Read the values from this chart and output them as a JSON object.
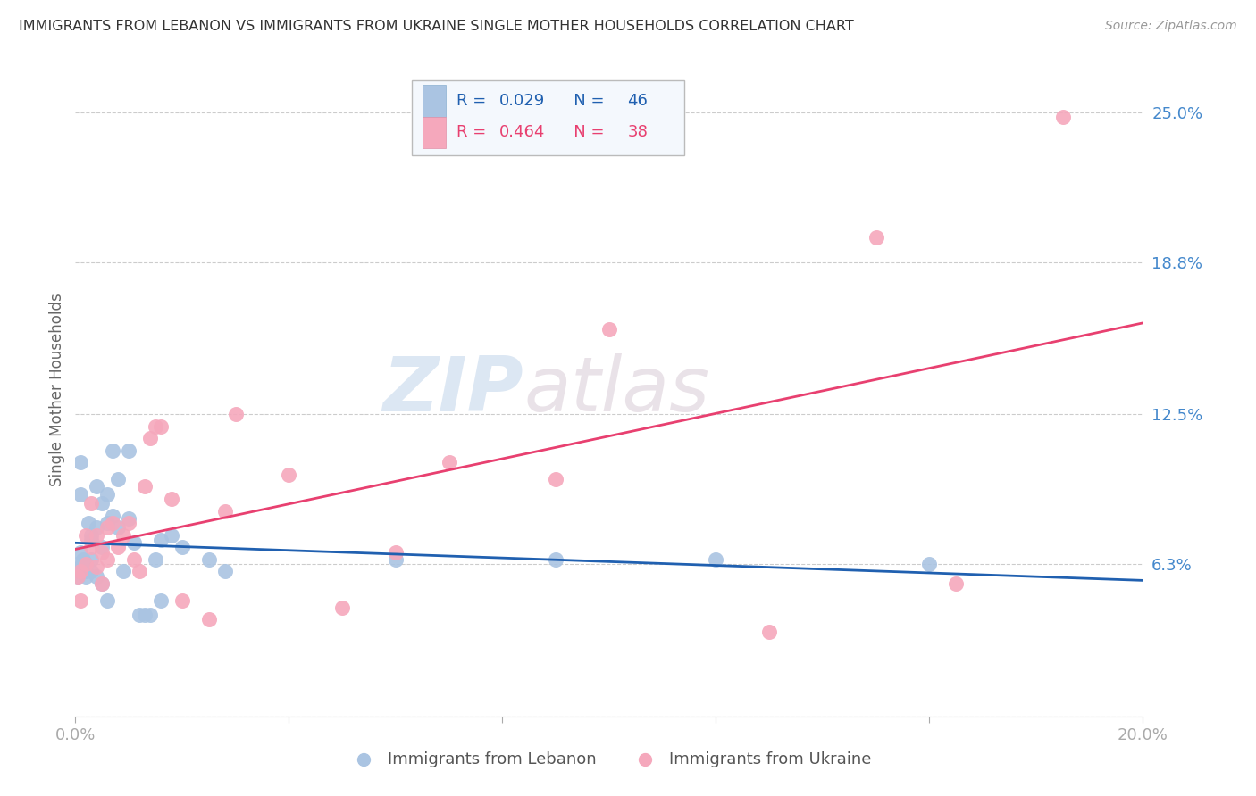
{
  "title": "IMMIGRANTS FROM LEBANON VS IMMIGRANTS FROM UKRAINE SINGLE MOTHER HOUSEHOLDS CORRELATION CHART",
  "source": "Source: ZipAtlas.com",
  "ylabel": "Single Mother Households",
  "xlim": [
    0.0,
    0.2
  ],
  "ylim": [
    0.0,
    0.27
  ],
  "yticks": [
    0.0,
    0.063,
    0.125,
    0.188,
    0.25
  ],
  "ytick_labels": [
    "",
    "6.3%",
    "12.5%",
    "18.8%",
    "25.0%"
  ],
  "xticks": [
    0.0,
    0.04,
    0.08,
    0.12,
    0.16,
    0.2
  ],
  "xtick_labels": [
    "0.0%",
    "",
    "",
    "",
    "",
    "20.0%"
  ],
  "watermark_zip": "ZIP",
  "watermark_atlas": "atlas",
  "lebanon_color": "#aac4e2",
  "ukraine_color": "#f5a8bc",
  "lebanon_line_color": "#2060b0",
  "ukraine_line_color": "#e84070",
  "lebanon_R": 0.029,
  "lebanon_N": 46,
  "ukraine_R": 0.464,
  "ukraine_N": 38,
  "lebanon_x": [
    0.0005,
    0.0005,
    0.001,
    0.001,
    0.001,
    0.001,
    0.0015,
    0.002,
    0.002,
    0.002,
    0.0025,
    0.003,
    0.003,
    0.003,
    0.003,
    0.004,
    0.004,
    0.004,
    0.005,
    0.005,
    0.005,
    0.006,
    0.006,
    0.006,
    0.007,
    0.007,
    0.008,
    0.008,
    0.009,
    0.01,
    0.01,
    0.011,
    0.012,
    0.013,
    0.014,
    0.015,
    0.016,
    0.016,
    0.018,
    0.02,
    0.025,
    0.028,
    0.06,
    0.09,
    0.12,
    0.16
  ],
  "lebanon_y": [
    0.063,
    0.058,
    0.105,
    0.092,
    0.068,
    0.062,
    0.065,
    0.063,
    0.06,
    0.058,
    0.08,
    0.075,
    0.073,
    0.065,
    0.06,
    0.095,
    0.078,
    0.058,
    0.088,
    0.07,
    0.055,
    0.092,
    0.08,
    0.048,
    0.11,
    0.083,
    0.098,
    0.078,
    0.06,
    0.11,
    0.082,
    0.072,
    0.042,
    0.042,
    0.042,
    0.065,
    0.073,
    0.048,
    0.075,
    0.07,
    0.065,
    0.06,
    0.065,
    0.065,
    0.065,
    0.063
  ],
  "ukraine_x": [
    0.0005,
    0.001,
    0.001,
    0.002,
    0.002,
    0.003,
    0.003,
    0.004,
    0.004,
    0.005,
    0.005,
    0.006,
    0.006,
    0.007,
    0.008,
    0.009,
    0.01,
    0.011,
    0.012,
    0.013,
    0.014,
    0.015,
    0.016,
    0.018,
    0.02,
    0.025,
    0.028,
    0.03,
    0.04,
    0.05,
    0.06,
    0.07,
    0.09,
    0.1,
    0.13,
    0.15,
    0.165,
    0.185
  ],
  "ukraine_y": [
    0.058,
    0.06,
    0.048,
    0.075,
    0.063,
    0.088,
    0.07,
    0.075,
    0.062,
    0.068,
    0.055,
    0.078,
    0.065,
    0.08,
    0.07,
    0.075,
    0.08,
    0.065,
    0.06,
    0.095,
    0.115,
    0.12,
    0.12,
    0.09,
    0.048,
    0.04,
    0.085,
    0.125,
    0.1,
    0.045,
    0.068,
    0.105,
    0.098,
    0.16,
    0.035,
    0.198,
    0.055,
    0.248
  ],
  "grid_color": "#cccccc",
  "background_color": "#ffffff",
  "tick_label_color": "#4488cc",
  "title_color": "#333333",
  "source_color": "#999999"
}
